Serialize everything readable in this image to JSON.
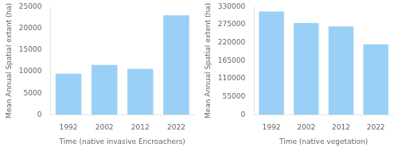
{
  "chart_data": [
    {
      "type": "bar",
      "categories": [
        "1992",
        "2002",
        "2012",
        "2022"
      ],
      "values": [
        9500,
        11500,
        10600,
        23000
      ],
      "xlabel": "Time (native invasive Encroachers)",
      "ylabel": "Mean Annual Spatial extant (ha)",
      "ylim": [
        0,
        25000
      ],
      "yticks": [
        0,
        5000,
        10000,
        15000,
        20000,
        25000
      ],
      "grid": false
    },
    {
      "type": "bar",
      "categories": [
        "1992",
        "2002",
        "2012",
        "2022"
      ],
      "values": [
        315000,
        280000,
        270000,
        215000
      ],
      "xlabel": "Time (native vegetation)",
      "ylabel": "Mean Annual Spatial extent (ha)",
      "ylim": [
        0,
        330000
      ],
      "yticks": [
        0,
        55000,
        110000,
        165000,
        220000,
        275000,
        330000
      ],
      "grid": false
    }
  ]
}
